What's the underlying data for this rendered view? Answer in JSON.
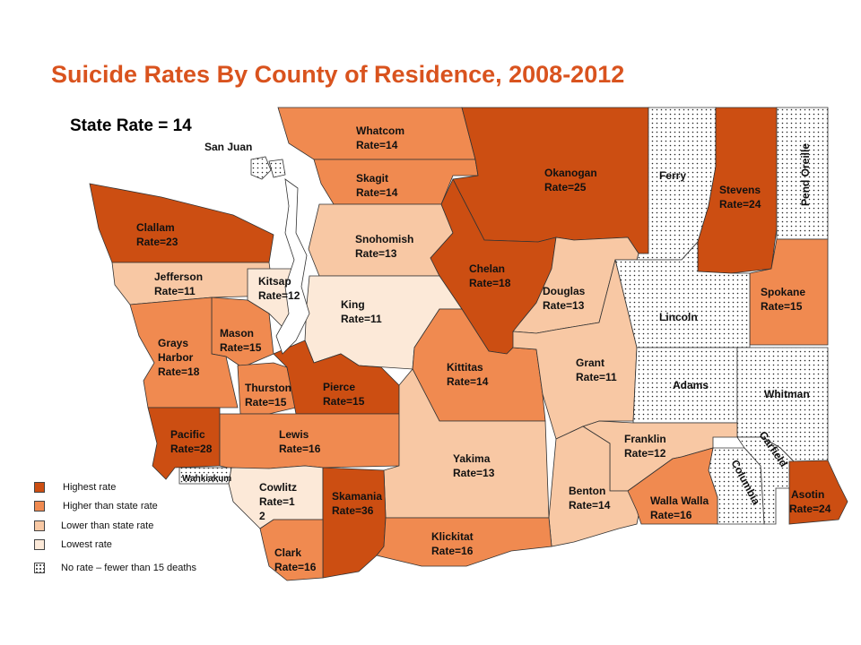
{
  "title": "Suicide Rates By County of Residence, 2008-2012",
  "state_rate": "State Rate = 14",
  "colors": {
    "highest": "#cc4e12",
    "higher": "#f08a50",
    "lower": "#f8c8a4",
    "lowest": "#fce9d8",
    "no_rate": "#ffffff",
    "title": "#d9531e"
  },
  "counties": {
    "san_juan": {
      "name": "San Juan"
    },
    "whatcom": {
      "name": "Whatcom",
      "rate": "Rate=14"
    },
    "skagit": {
      "name": "Skagit",
      "rate": "Rate=14"
    },
    "okanogan": {
      "name": "Okanogan",
      "rate": "Rate=25"
    },
    "ferry": {
      "name": "Ferry"
    },
    "stevens": {
      "name": "Stevens",
      "rate": "Rate=24"
    },
    "pend_oreille": {
      "name": "Pend Oreille"
    },
    "clallam": {
      "name": "Clallam",
      "rate": "Rate=23"
    },
    "snohomish": {
      "name": "Snohomish",
      "rate": "Rate=13"
    },
    "chelan": {
      "name": "Chelan",
      "rate": "Rate=18"
    },
    "jefferson": {
      "name": "Jefferson",
      "rate": "Rate=11"
    },
    "kitsap": {
      "name": "Kitsap",
      "rate": "Rate=12"
    },
    "king": {
      "name": "King",
      "rate": "Rate=11"
    },
    "douglas": {
      "name": "Douglas",
      "rate": "Rate=13"
    },
    "spokane": {
      "name": "Spokane",
      "rate": "Rate=15"
    },
    "lincoln": {
      "name": "Lincoln"
    },
    "mason": {
      "name": "Mason",
      "rate": "Rate=15"
    },
    "grays_harbor": {
      "name1": "Grays",
      "name2": "Harbor",
      "rate": "Rate=18"
    },
    "kittitas": {
      "name": "Kittitas",
      "rate": "Rate=14"
    },
    "grant": {
      "name": "Grant",
      "rate": "Rate=11"
    },
    "adams": {
      "name": "Adams"
    },
    "whitman": {
      "name": "Whitman"
    },
    "thurston": {
      "name": "Thurston",
      "rate": "Rate=15"
    },
    "pierce": {
      "name": "Pierce",
      "rate": "Rate=15"
    },
    "pacific": {
      "name": "Pacific",
      "rate": "Rate=28"
    },
    "lewis": {
      "name": "Lewis",
      "rate": "Rate=16"
    },
    "yakima": {
      "name": "Yakima",
      "rate": "Rate=13"
    },
    "franklin": {
      "name": "Franklin",
      "rate": "Rate=12"
    },
    "garfield": {
      "name": "Garfield"
    },
    "columbia": {
      "name": "Columbia"
    },
    "wahkiakum": {
      "name": "Wahkiakum"
    },
    "cowlitz": {
      "name": "Cowlitz",
      "rate1": "Rate=1",
      "rate2": "2"
    },
    "skamania": {
      "name": "Skamania",
      "rate": "Rate=36"
    },
    "benton": {
      "name": "Benton",
      "rate": "Rate=14"
    },
    "walla_walla": {
      "name": "Walla Walla",
      "rate": "Rate=16"
    },
    "asotin": {
      "name": "Asotin",
      "rate": "Rate=24"
    },
    "clark": {
      "name": "Clark",
      "rate": "Rate=16"
    },
    "klickitat": {
      "name": "Klickitat",
      "rate": "Rate=16"
    }
  },
  "legend": [
    {
      "label": "Highest rate",
      "class": "highest"
    },
    {
      "label": "Higher than state rate",
      "class": "higher"
    },
    {
      "label": "Lower than state rate",
      "class": "lower"
    },
    {
      "label": "Lowest rate",
      "class": "lowest"
    },
    {
      "label": "No rate – fewer than 15 deaths",
      "class": "no_rate"
    }
  ]
}
